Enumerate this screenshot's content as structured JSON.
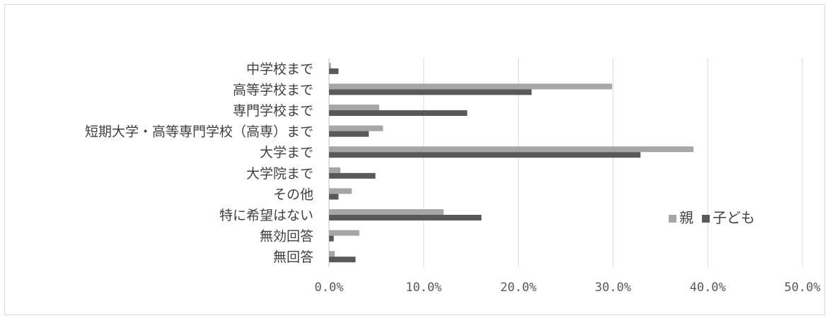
{
  "chart_data": {
    "type": "bar",
    "orientation": "horizontal",
    "categories": [
      "中学校まで",
      "高等学校まで",
      "専門学校まで",
      "短期大学・高等専門学校（高専）まで",
      "大学まで",
      "大学院まで",
      "その他",
      "特に希望はない",
      "無効回答",
      "無回答"
    ],
    "series": [
      {
        "name": "親",
        "color": "#a6a6a6",
        "values": [
          0.2,
          29.9,
          5.3,
          5.7,
          38.5,
          1.2,
          2.4,
          12.1,
          3.2,
          0.6
        ]
      },
      {
        "name": "子ども",
        "color": "#595959",
        "values": [
          1.0,
          21.4,
          14.6,
          4.2,
          32.9,
          4.9,
          1.0,
          16.1,
          0.5,
          2.8
        ]
      }
    ],
    "xlim": [
      0,
      50
    ],
    "xticks": [
      0,
      10,
      20,
      30,
      40,
      50
    ],
    "xtick_labels": [
      "0.0%",
      "10.0%",
      "20.0%",
      "30.0%",
      "40.0%",
      "50.0%"
    ],
    "grid": true,
    "legend": "right"
  }
}
